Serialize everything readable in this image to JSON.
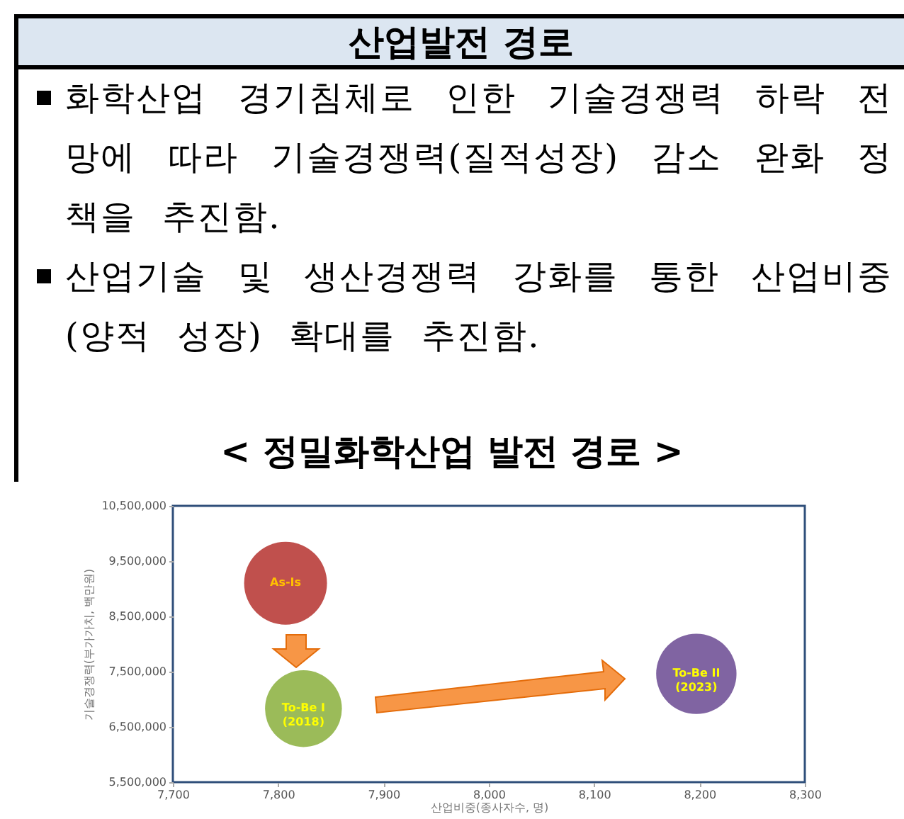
{
  "chart_data": {
    "type": "bubble",
    "title": "< 정밀화학산업 발전 경로 >",
    "annotations": [
      "산업발전 경로",
      "화학산업 경기침체로 인한 기술경쟁력 하락 전망에 따라 기술경쟁력(질적성장) 감소 완화 정책을 추진함.",
      "산업기술 및 생산경쟁력 강화를 통한 산업비중(양적 성장) 확대를 추진함."
    ],
    "xlabel": "산업비중(종사자수, 명)",
    "ylabel": "기술경쟁력(부가가치, 백만원)",
    "xlim": [
      7700,
      8300
    ],
    "xticks": [
      {
        "value": 7700,
        "label": "7,700"
      },
      {
        "value": 7800,
        "label": "7,800"
      },
      {
        "value": 7900,
        "label": "7,900"
      },
      {
        "value": 8000,
        "label": "8,000"
      },
      {
        "value": 8100,
        "label": "8,100"
      },
      {
        "value": 8200,
        "label": "8,200"
      },
      {
        "value": 8300,
        "label": "8,300"
      }
    ],
    "ylim": [
      5500000,
      10500000
    ],
    "yticks": [
      {
        "value": 5500000,
        "label": "5,500,000"
      },
      {
        "value": 6500000,
        "label": "6,500,000"
      },
      {
        "value": 7500000,
        "label": "7,500,000"
      },
      {
        "value": 8500000,
        "label": "8,500,000"
      },
      {
        "value": 9500000,
        "label": "9,500,000"
      },
      {
        "value": 10500000,
        "label": "10,500,000"
      }
    ],
    "series": [
      {
        "name": "As-Is",
        "color": "#c0504d",
        "x": [
          7807
        ],
        "values": [
          9100000
        ],
        "sizes": [
          1
        ]
      },
      {
        "name": "To-Be I (2018)",
        "color": "#9bbb59",
        "x": [
          7824
        ],
        "values": [
          6830000
        ],
        "sizes": [
          0.86
        ]
      },
      {
        "name": "To-Be II (2023)",
        "color": "#8064a2",
        "x": [
          8197
        ],
        "values": [
          7460000
        ],
        "sizes": [
          0.94
        ]
      }
    ]
  }
}
